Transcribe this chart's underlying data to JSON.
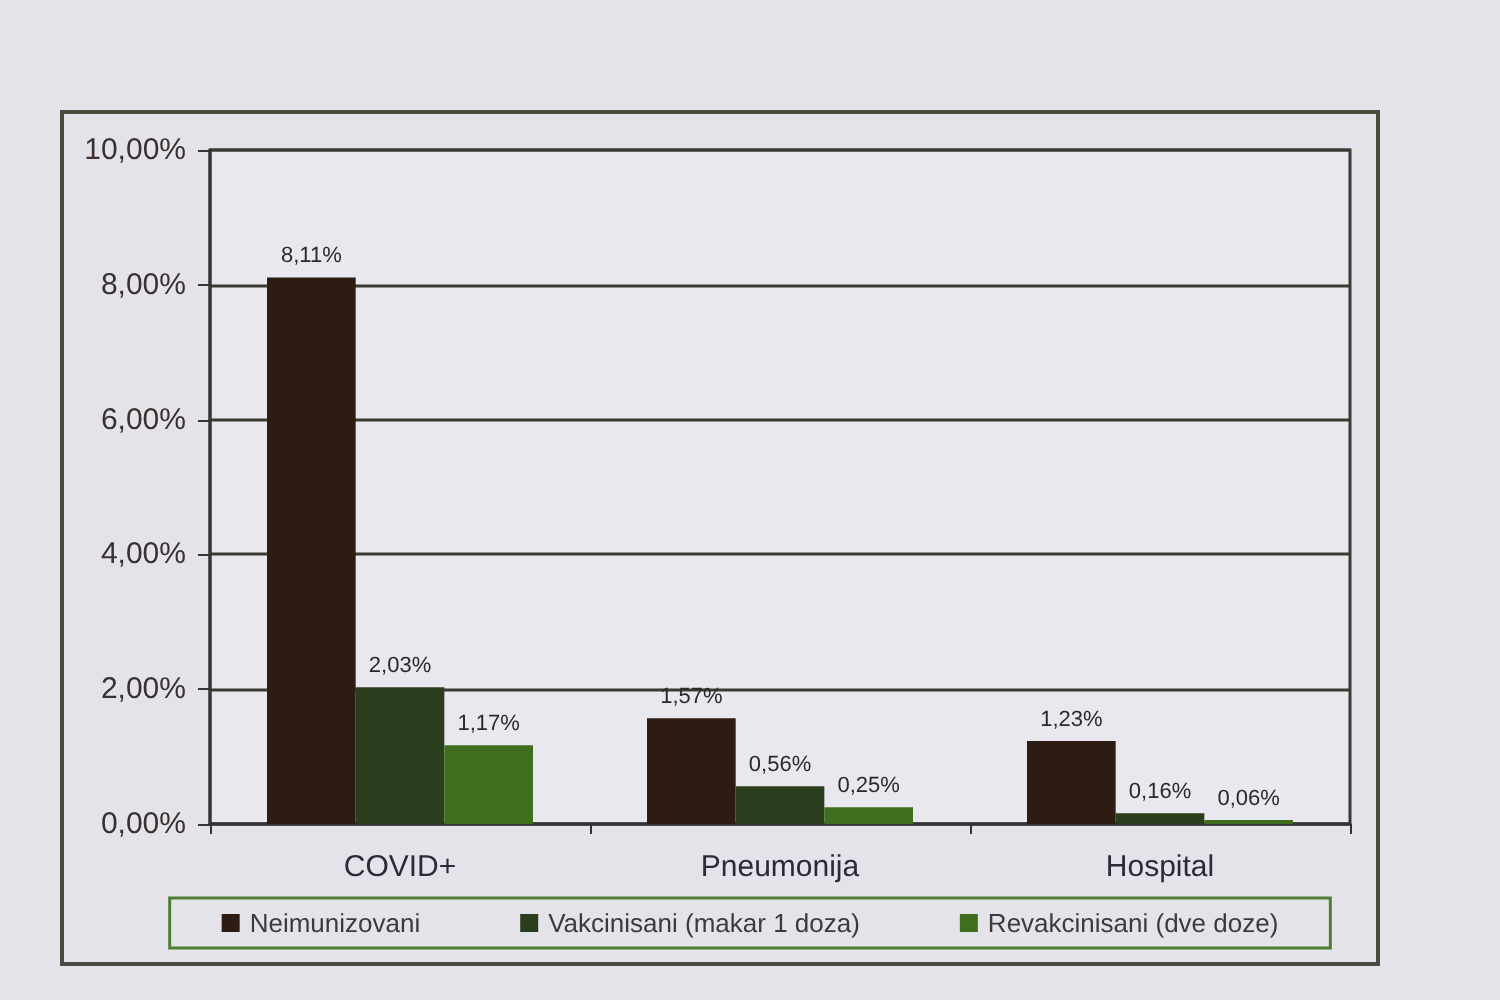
{
  "chart_data": {
    "type": "bar",
    "categories": [
      "COVID+",
      "Pneumonija",
      "Hospital"
    ],
    "series": [
      {
        "name": "Neimunizovani",
        "color": "#2e1c12",
        "values": [
          8.11,
          1.57,
          1.23
        ],
        "value_labels": [
          "8,11%",
          "1,57%",
          "1,23%"
        ]
      },
      {
        "name": "Vakcinisani (makar 1 doza)",
        "color": "#2a3d1c",
        "values": [
          2.03,
          0.56,
          0.16
        ],
        "value_labels": [
          "2,03%",
          "0,56%",
          "0,16%"
        ]
      },
      {
        "name": "Revakcinisani (dve doze)",
        "color": "#3f6e1f",
        "values": [
          1.17,
          0.25,
          0.06
        ],
        "value_labels": [
          "1,17%",
          "0,25%",
          "0,06%"
        ]
      }
    ],
    "ylim": [
      0,
      10
    ],
    "yticks": [
      {
        "value": 0,
        "label": "0,00%"
      },
      {
        "value": 2,
        "label": "2,00%"
      },
      {
        "value": 4,
        "label": "4,00%"
      },
      {
        "value": 6,
        "label": "6,00%"
      },
      {
        "value": 8,
        "label": "8,00%"
      },
      {
        "value": 10,
        "label": "10,00%"
      }
    ],
    "grid": "y",
    "legend": "bottom"
  }
}
